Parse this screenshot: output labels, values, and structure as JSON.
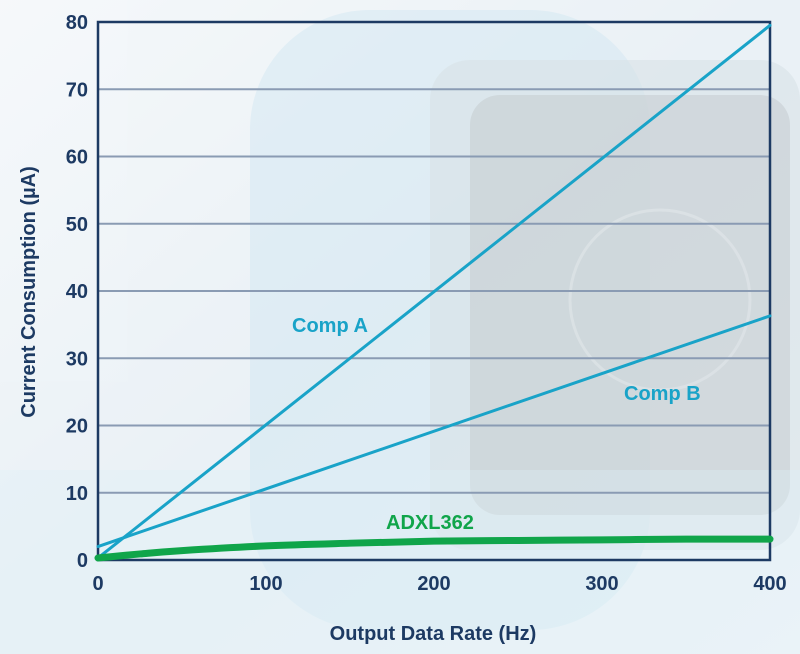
{
  "chart_data": {
    "type": "line",
    "title": "",
    "xlabel": "Output Data Rate (Hz)",
    "ylabel": "Current Consumption (µA)",
    "xlim": [
      0,
      400
    ],
    "ylim": [
      0,
      80
    ],
    "xticks": [
      0,
      100,
      200,
      300,
      400
    ],
    "yticks": [
      0,
      10,
      20,
      30,
      40,
      50,
      60,
      70,
      80
    ],
    "grid": "horizontal",
    "legend": "inline labels",
    "series": [
      {
        "name": "Comp A",
        "color": "#19a3c8",
        "x": [
          0,
          400
        ],
        "y": [
          0.3,
          79.5
        ]
      },
      {
        "name": "Comp B",
        "color": "#19a3c8",
        "x": [
          0,
          400
        ],
        "y": [
          2.0,
          36.3
        ]
      },
      {
        "name": "ADXL362",
        "color": "#10a54a",
        "x": [
          0,
          25,
          50,
          100,
          150,
          200,
          250,
          300,
          350,
          400
        ],
        "y": [
          0.3,
          0.9,
          1.4,
          2.1,
          2.5,
          2.8,
          2.9,
          3.0,
          3.1,
          3.1
        ]
      }
    ]
  },
  "colors": {
    "axis": "#1d3a63",
    "grid": "#8a9bb3",
    "text": "#1d3a63",
    "background_tint": "#dbe8f1"
  }
}
